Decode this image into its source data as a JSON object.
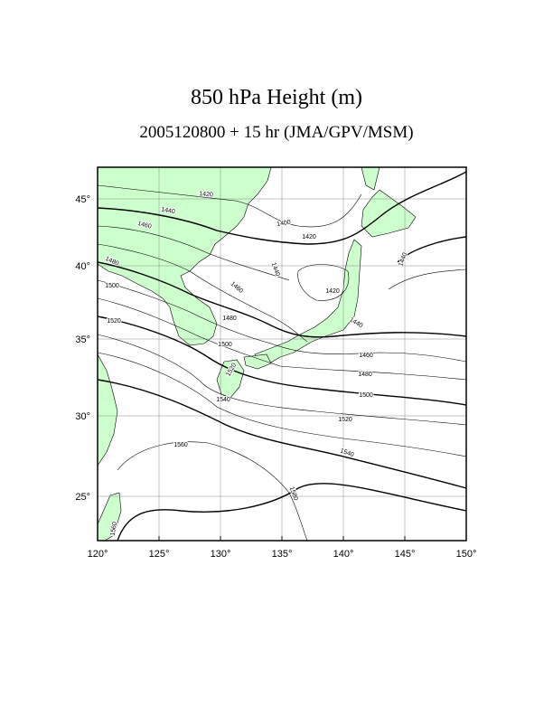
{
  "map": {
    "title": "850 hPa Height (m)",
    "subtitle": "2005120800 + 15 hr (JMA/GPV/MSM)",
    "longitude_labels": [
      "120°",
      "125°",
      "130°",
      "135°",
      "140°",
      "145°",
      "150°"
    ],
    "latitude_labels": [
      "45°",
      "40°",
      "35°",
      "30°",
      "25°"
    ],
    "contour_labels": [
      "1420",
      "1440",
      "1460",
      "1480",
      "1500",
      "1520",
      "1400",
      "1420",
      "1440",
      "1460",
      "1420",
      "1480",
      "1500",
      "1440",
      "1460",
      "1480",
      "1500",
      "1520",
      "1540",
      "1560",
      "1580",
      "1560",
      "1540",
      "1520",
      "1440"
    ]
  }
}
